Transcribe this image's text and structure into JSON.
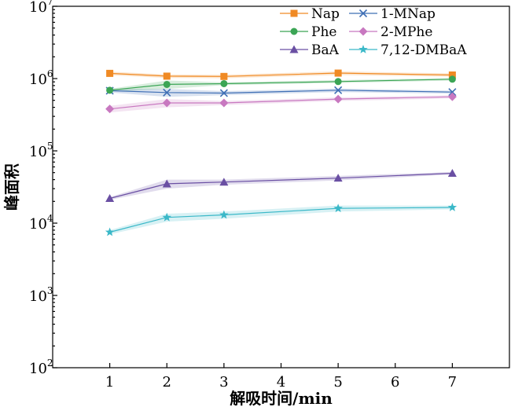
{
  "chart_data": {
    "type": "line",
    "title": "",
    "xlabel": "解吸时间/min",
    "ylabel": "峰面积",
    "x": [
      1,
      2,
      3,
      5,
      7
    ],
    "xlim": [
      0,
      8
    ],
    "xticks": [
      1,
      2,
      3,
      4,
      5,
      6,
      7
    ],
    "ylim": [
      100,
      10000000
    ],
    "yscale": "log",
    "yticks": [
      {
        "base": "10",
        "exp": "2",
        "value": 100
      },
      {
        "base": "10",
        "exp": "3",
        "value": 1000
      },
      {
        "base": "10",
        "exp": "4",
        "value": 10000
      },
      {
        "base": "10",
        "exp": "5",
        "value": 100000
      },
      {
        "base": "10",
        "exp": "6",
        "value": 1000000
      },
      {
        "base": "10",
        "exp": "7",
        "value": 10000000
      }
    ],
    "legend_position": "top-right",
    "series": [
      {
        "name": "Nap",
        "color": "#f08a24",
        "marker": "square",
        "values": [
          1180000,
          1080000,
          1070000,
          1190000,
          1120000
        ],
        "band_low": [
          1110000,
          1020000,
          1010000,
          1120000,
          1060000
        ],
        "band_high": [
          1250000,
          1140000,
          1130000,
          1260000,
          1180000
        ]
      },
      {
        "name": "1-MNap",
        "color": "#3f6fb5",
        "marker": "x",
        "values": [
          680000,
          640000,
          630000,
          690000,
          650000
        ],
        "band_low": [
          640000,
          560000,
          590000,
          650000,
          620000
        ],
        "band_high": [
          720000,
          720000,
          670000,
          730000,
          680000
        ]
      },
      {
        "name": "Phe",
        "color": "#3ba555",
        "marker": "circle",
        "values": [
          690000,
          830000,
          850000,
          910000,
          980000
        ],
        "band_low": [
          660000,
          720000,
          810000,
          870000,
          940000
        ],
        "band_high": [
          720000,
          940000,
          890000,
          950000,
          1020000
        ]
      },
      {
        "name": "2-MPhe",
        "color": "#c878c0",
        "marker": "diamond",
        "values": [
          380000,
          460000,
          460000,
          520000,
          560000
        ],
        "band_low": [
          340000,
          400000,
          430000,
          490000,
          530000
        ],
        "band_high": [
          420000,
          520000,
          490000,
          550000,
          590000
        ]
      },
      {
        "name": "BaA",
        "color": "#6a4fa3",
        "marker": "triangle",
        "values": [
          22000,
          35000,
          37000,
          42000,
          49000
        ],
        "band_low": [
          21000,
          30000,
          34000,
          39000,
          47000
        ],
        "band_high": [
          23000,
          40000,
          40000,
          45000,
          51000
        ]
      },
      {
        "name": "7,12-DMBaA",
        "color": "#3ab8c8",
        "marker": "star",
        "values": [
          7500,
          12000,
          13000,
          16000,
          16500
        ],
        "band_low": [
          7000,
          10500,
          11500,
          14500,
          15500
        ],
        "band_high": [
          8000,
          13500,
          14500,
          17500,
          17500
        ]
      }
    ]
  }
}
